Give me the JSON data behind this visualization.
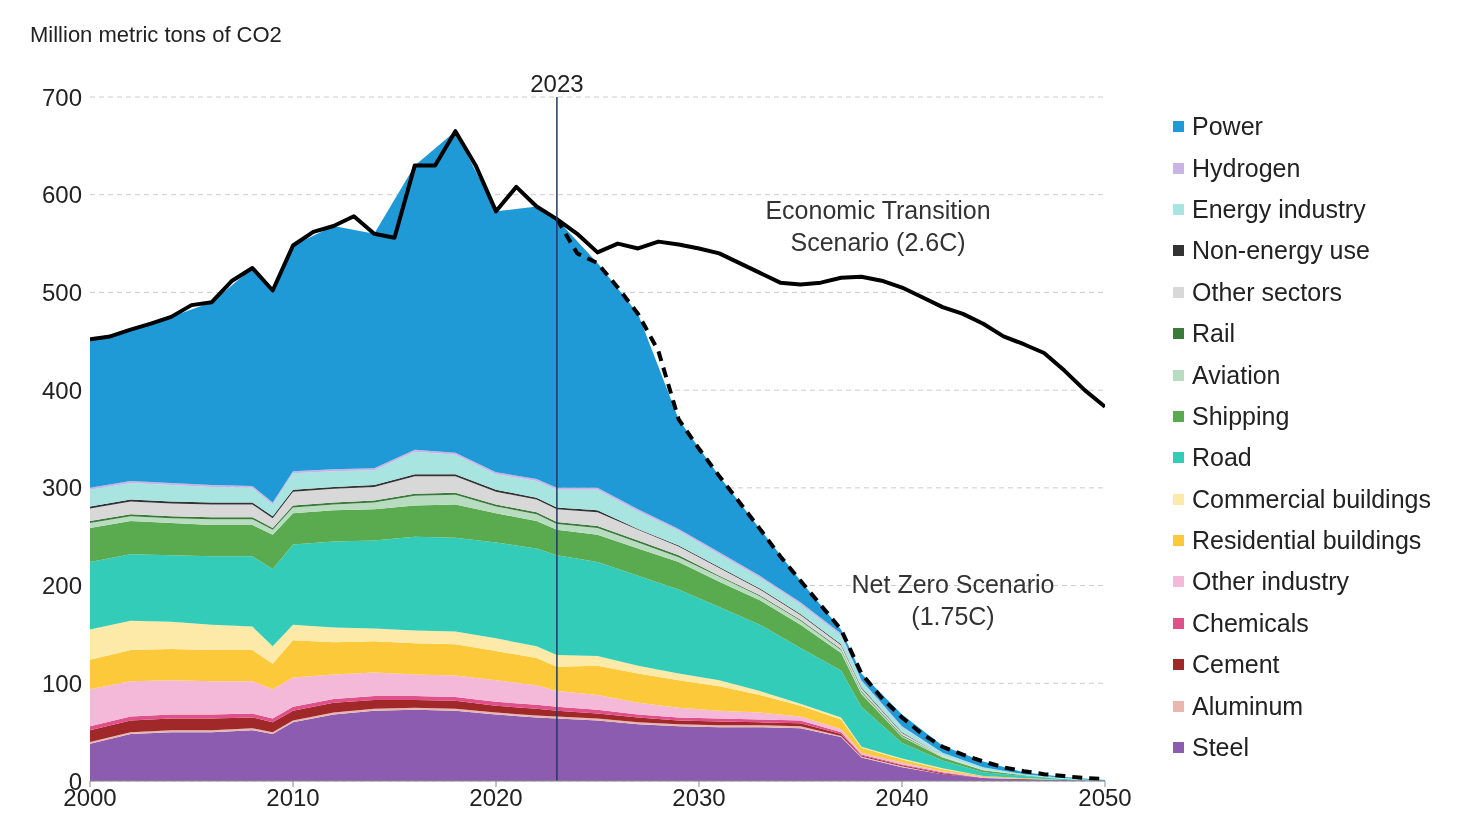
{
  "chart_data": {
    "type": "area",
    "stacked": true,
    "ylabel": "Million metric tons of CO2",
    "x": [
      2000,
      2002,
      2004,
      2006,
      2008,
      2009,
      2010,
      2012,
      2014,
      2016,
      2018,
      2020,
      2022,
      2023,
      2025,
      2027,
      2029,
      2031,
      2033,
      2035,
      2037,
      2038,
      2040,
      2042,
      2044,
      2046,
      2048,
      2050
    ],
    "series": [
      {
        "name": "Steel",
        "color": "#8c5cb0",
        "values": [
          38,
          48,
          50,
          50,
          52,
          48,
          60,
          68,
          72,
          73,
          72,
          68,
          65,
          64,
          62,
          58,
          56,
          55,
          55,
          54,
          45,
          24,
          14,
          7,
          3,
          2,
          1,
          0
        ]
      },
      {
        "name": "Aluminum",
        "color": "#e8b8b0",
        "values": [
          2,
          2,
          2,
          2,
          2,
          2,
          2,
          2,
          2,
          2,
          2,
          2,
          2,
          2,
          2,
          2,
          2,
          2,
          2,
          2,
          1,
          1,
          1,
          0,
          0,
          0,
          0,
          0
        ]
      },
      {
        "name": "Cement",
        "color": "#a02828",
        "values": [
          12,
          12,
          12,
          12,
          11,
          10,
          10,
          10,
          9,
          8,
          8,
          7,
          7,
          6,
          5,
          5,
          4,
          4,
          3,
          3,
          2,
          1,
          1,
          1,
          0,
          0,
          0,
          0
        ]
      },
      {
        "name": "Chemicals",
        "color": "#e0508a",
        "values": [
          4,
          4,
          4,
          4,
          4,
          4,
          4,
          4,
          4,
          4,
          4,
          4,
          4,
          4,
          4,
          3,
          3,
          3,
          3,
          3,
          2,
          1,
          1,
          1,
          0,
          0,
          0,
          0
        ]
      },
      {
        "name": "Other industry",
        "color": "#f4b8d8",
        "values": [
          38,
          36,
          35,
          34,
          33,
          30,
          30,
          25,
          24,
          22,
          22,
          22,
          20,
          16,
          15,
          12,
          10,
          8,
          7,
          4,
          3,
          2,
          2,
          1,
          1,
          0,
          0,
          0
        ]
      },
      {
        "name": "Residential buildings",
        "color": "#fbc93a",
        "values": [
          30,
          32,
          32,
          32,
          32,
          26,
          38,
          33,
          32,
          32,
          32,
          30,
          28,
          25,
          30,
          30,
          28,
          25,
          18,
          11,
          10,
          5,
          3,
          2,
          1,
          1,
          0,
          0
        ]
      },
      {
        "name": "Commercial buildings",
        "color": "#fde9a8",
        "values": [
          31,
          30,
          28,
          26,
          24,
          18,
          16,
          15,
          13,
          13,
          13,
          13,
          12,
          12,
          10,
          8,
          7,
          6,
          4,
          2,
          2,
          1,
          1,
          1,
          0,
          0,
          0,
          0
        ]
      },
      {
        "name": "Road",
        "color": "#33ccb8",
        "values": [
          69,
          68,
          68,
          70,
          72,
          79,
          82,
          88,
          90,
          96,
          96,
          98,
          100,
          102,
          96,
          92,
          86,
          75,
          68,
          57,
          48,
          41,
          16,
          8,
          4,
          2,
          1,
          0
        ]
      },
      {
        "name": "Shipping",
        "color": "#5aaa50",
        "values": [
          35,
          34,
          33,
          32,
          32,
          35,
          32,
          32,
          32,
          32,
          34,
          30,
          28,
          26,
          28,
          28,
          28,
          26,
          25,
          24,
          18,
          13,
          6,
          3,
          2,
          1,
          0,
          0
        ]
      },
      {
        "name": "Aviation",
        "color": "#b8dcc0",
        "values": [
          5,
          5,
          5,
          6,
          6,
          5,
          6,
          6,
          7,
          10,
          10,
          7,
          7,
          6,
          7,
          6,
          5,
          5,
          4,
          4,
          3,
          2,
          1,
          1,
          0,
          0,
          0,
          0
        ]
      },
      {
        "name": "Rail",
        "color": "#3a7a3a",
        "values": [
          2,
          2,
          2,
          2,
          2,
          2,
          2,
          2,
          2,
          2,
          2,
          2,
          2,
          2,
          2,
          2,
          2,
          1,
          1,
          1,
          1,
          1,
          1,
          0,
          0,
          0,
          0,
          0
        ]
      },
      {
        "name": "Other sectors",
        "color": "#d8d8d8",
        "values": [
          13,
          13,
          13,
          13,
          13,
          10,
          14,
          14,
          14,
          18,
          17,
          13,
          13,
          13,
          14,
          11,
          9,
          8,
          6,
          5,
          4,
          3,
          2,
          1,
          1,
          0,
          0,
          0
        ]
      },
      {
        "name": "Non-energy use",
        "color": "#333333",
        "values": [
          2,
          2,
          2,
          2,
          2,
          2,
          2,
          2,
          2,
          2,
          2,
          2,
          2,
          2,
          2,
          1,
          1,
          1,
          1,
          1,
          1,
          1,
          1,
          0,
          0,
          0,
          0,
          0
        ]
      },
      {
        "name": "Energy industry",
        "color": "#a8e4e0",
        "values": [
          17,
          17,
          17,
          16,
          15,
          12,
          17,
          16,
          15,
          23,
          20,
          16,
          17,
          18,
          21,
          18,
          15,
          13,
          11,
          10,
          9,
          6,
          5,
          3,
          2,
          1,
          1,
          0
        ]
      },
      {
        "name": "Hydrogen",
        "color": "#c8b4e6",
        "values": [
          2,
          2,
          2,
          2,
          2,
          2,
          2,
          2,
          2,
          2,
          2,
          2,
          2,
          2,
          2,
          2,
          2,
          2,
          2,
          2,
          2,
          1,
          1,
          0,
          0,
          0,
          0,
          0
        ]
      },
      {
        "name": "Power",
        "color": "#1f9ad6",
        "values": [
          152,
          155,
          170,
          187,
          223,
          217,
          231,
          249,
          240,
          291,
          329,
          267,
          279,
          275,
          230,
          200,
          112,
          78,
          48,
          22,
          4,
          7,
          12,
          7,
          6,
          2,
          1,
          1
        ]
      },
      {
        "type": "line",
        "color": "#000000",
        "line_style": "solid",
        "x": [
          2000,
          2001,
          2002,
          2003,
          2004,
          2005,
          2006,
          2007,
          2008,
          2009,
          2010,
          2011,
          2012,
          2013,
          2014,
          2015,
          2016,
          2017,
          2018,
          2019,
          2020,
          2021,
          2022,
          2023,
          2024,
          2025,
          2026,
          2027,
          2028,
          2029,
          2030,
          2031,
          2032,
          2033,
          2034,
          2035,
          2036,
          2037,
          2038,
          2039,
          2040,
          2041,
          2042,
          2043,
          2044,
          2045,
          2046,
          2047,
          2048,
          2049,
          2050
        ],
        "values": [
          452,
          455,
          462,
          468,
          475,
          487,
          490,
          512,
          525,
          502,
          548,
          562,
          568,
          578,
          560,
          556,
          630,
          630,
          665,
          630,
          583,
          608,
          588,
          575,
          560,
          541,
          550,
          545,
          552,
          549,
          545,
          540,
          530,
          520,
          510,
          508,
          510,
          515,
          516,
          512,
          505,
          495,
          485,
          478,
          468,
          455,
          447,
          438,
          420,
          400,
          383
        ]
      },
      {
        "type": "line",
        "color": "#000000",
        "line_style": "dashed",
        "x": [
          2023,
          2024,
          2025,
          2026,
          2027,
          2028,
          2029,
          2030,
          2031,
          2032,
          2033,
          2034,
          2035,
          2036,
          2037,
          2038,
          2039,
          2040,
          2041,
          2042,
          2043,
          2044,
          2045,
          2046,
          2047,
          2048,
          2049,
          2050
        ],
        "values": [
          575,
          540,
          530,
          505,
          478,
          440,
          370,
          340,
          312,
          285,
          258,
          230,
          205,
          180,
          155,
          110,
          85,
          65,
          48,
          35,
          27,
          20,
          14,
          10,
          7,
          5,
          3,
          2
        ]
      }
    ],
    "xlim": [
      2000,
      2050
    ],
    "xticks": [
      2000,
      2010,
      2020,
      2030,
      2040,
      2050
    ],
    "ylim": [
      0,
      700
    ],
    "yticks": [
      0,
      100,
      200,
      300,
      400,
      500,
      600,
      700
    ],
    "grid": "y",
    "legend": "right",
    "marker": "none",
    "ref_lines": [
      {
        "axis": "x",
        "value": 2023,
        "label": "2023",
        "color": "#1f3864"
      }
    ],
    "annotations": [
      "Economic Transition\nScenario (2.6C)",
      "Net Zero Scenario\n(1.75C)"
    ]
  }
}
